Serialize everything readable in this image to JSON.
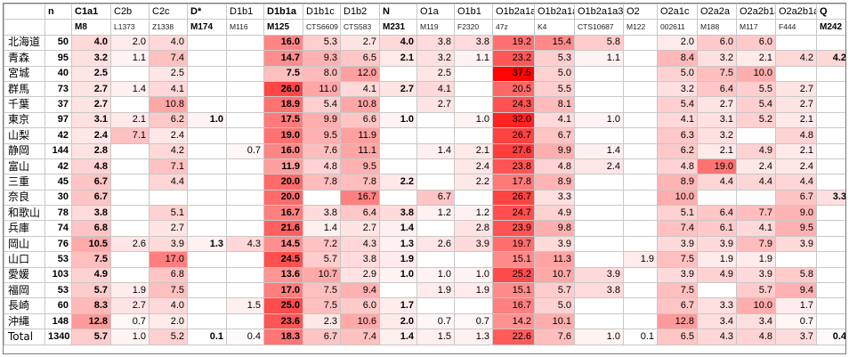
{
  "header": [
    "n",
    "C1a1",
    "C2b",
    "C2c",
    "D*",
    "D1b1",
    "D1b1a",
    "D1b1c",
    "D1b2",
    "N",
    "O1a",
    "O1b1",
    "O1b2a1a1",
    "O1b2a1a2",
    "O1b2a1a3",
    "O2",
    "O2a1c",
    "O2a2a",
    "O2a2b1a1",
    "O2a2b1a2",
    "Q"
  ],
  "subheader": [
    "",
    "M8",
    "L1373",
    "Z1338",
    "M174",
    "M116",
    "M125",
    "CTS6609",
    "CTS583",
    "M231",
    "M119",
    "F2320",
    "47z",
    "K4",
    "CTS10687",
    "M122",
    "002611",
    "M188",
    "M117",
    "F444",
    "M242"
  ],
  "bold_columns": [
    1,
    4,
    6,
    9,
    20
  ],
  "rows": [
    {
      "pref": "北海道",
      "n": "50",
      "v": [
        "4.0",
        "2.0",
        "4.0",
        "",
        "",
        "16.0",
        "5.3",
        "2.7",
        "4.0",
        "3.8",
        "3.8",
        "19.2",
        "15.4",
        "5.8",
        "",
        "2.0",
        "6.0",
        "6.0",
        "",
        ""
      ]
    },
    {
      "pref": "青森",
      "n": "95",
      "v": [
        "3.2",
        "1.1",
        "7.4",
        "",
        "",
        "14.7",
        "9.3",
        "6.5",
        "2.1",
        "3.2",
        "1.1",
        "23.2",
        "5.3",
        "1.1",
        "",
        "8.4",
        "3.2",
        "2.1",
        "4.2",
        "4.2"
      ]
    },
    {
      "pref": "宮城",
      "n": "40",
      "v": [
        "2.5",
        "",
        "2.5",
        "",
        "",
        "7.5",
        "8.0",
        "12.0",
        "",
        "2.5",
        "",
        "37.5",
        "5.0",
        "",
        "",
        "5.0",
        "7.5",
        "10.0",
        "",
        ""
      ]
    },
    {
      "pref": "群馬",
      "n": "73",
      "v": [
        "2.7",
        "1.4",
        "4.1",
        "",
        "",
        "26.0",
        "11.0",
        "4.1",
        "2.7",
        "4.1",
        "",
        "20.5",
        "5.5",
        "",
        "",
        "3.2",
        "6.4",
        "5.5",
        "2.7",
        ""
      ]
    },
    {
      "pref": "千葉",
      "n": "37",
      "v": [
        "2.7",
        "",
        "10.8",
        "",
        "",
        "18.9",
        "5.4",
        "10.8",
        "",
        "2.7",
        "",
        "24.3",
        "8.1",
        "",
        "",
        "5.4",
        "2.7",
        "5.4",
        "2.7",
        ""
      ]
    },
    {
      "pref": "東京",
      "n": "97",
      "v": [
        "3.1",
        "2.1",
        "6.2",
        "1.0",
        "",
        "17.5",
        "9.9",
        "6.6",
        "1.0",
        "",
        "1.0",
        "32.0",
        "4.1",
        "1.0",
        "",
        "4.1",
        "3.1",
        "5.2",
        "2.1",
        ""
      ]
    },
    {
      "pref": "山梨",
      "n": "42",
      "v": [
        "2.4",
        "7.1",
        "2.4",
        "",
        "",
        "19.0",
        "9.5",
        "11.9",
        "",
        "",
        "",
        "26.7",
        "6.7",
        "",
        "",
        "6.3",
        "3.2",
        "",
        "4.8",
        ""
      ]
    },
    {
      "pref": "静岡",
      "n": "144",
      "v": [
        "2.8",
        "",
        "4.2",
        "",
        "0.7",
        "16.0",
        "7.6",
        "11.1",
        "",
        "1.4",
        "2.1",
        "27.6",
        "9.9",
        "1.4",
        "",
        "6.2",
        "2.1",
        "4.9",
        "2.1",
        ""
      ]
    },
    {
      "pref": "富山",
      "n": "42",
      "v": [
        "4.8",
        "",
        "7.1",
        "",
        "",
        "11.9",
        "4.8",
        "9.5",
        "",
        "",
        "2.4",
        "23.8",
        "4.8",
        "2.4",
        "",
        "4.8",
        "19.0",
        "2.4",
        "2.4",
        ""
      ]
    },
    {
      "pref": "三重",
      "n": "45",
      "v": [
        "6.7",
        "",
        "4.4",
        "",
        "",
        "20.0",
        "7.8",
        "7.8",
        "2.2",
        "",
        "2.2",
        "17.8",
        "8.9",
        "",
        "",
        "8.9",
        "4.4",
        "4.4",
        "4.4",
        ""
      ]
    },
    {
      "pref": "奈良",
      "n": "30",
      "v": [
        "6.7",
        "",
        "",
        "",
        "",
        "20.0",
        "",
        "16.7",
        "",
        "6.7",
        "",
        "26.7",
        "3.3",
        "",
        "",
        "10.0",
        "",
        "",
        "6.7",
        "3.3"
      ]
    },
    {
      "pref": "和歌山",
      "n": "78",
      "v": [
        "3.8",
        "",
        "5.1",
        "",
        "",
        "16.7",
        "3.8",
        "6.4",
        "3.8",
        "1.2",
        "1.2",
        "24.7",
        "4.9",
        "",
        "",
        "5.1",
        "6.4",
        "7.7",
        "9.0",
        ""
      ]
    },
    {
      "pref": "兵庫",
      "n": "74",
      "v": [
        "6.8",
        "",
        "2.7",
        "",
        "",
        "21.6",
        "1.4",
        "2.7",
        "1.4",
        "",
        "2.8",
        "23.9",
        "9.8",
        "",
        "",
        "7.4",
        "6.1",
        "4.1",
        "9.5",
        ""
      ]
    },
    {
      "pref": "岡山",
      "n": "76",
      "v": [
        "10.5",
        "2.6",
        "3.9",
        "1.3",
        "4.3",
        "14.5",
        "7.2",
        "4.3",
        "1.3",
        "2.6",
        "3.9",
        "19.7",
        "3.9",
        "",
        "",
        "3.9",
        "3.9",
        "7.9",
        "3.9",
        ""
      ]
    },
    {
      "pref": "山口",
      "n": "53",
      "v": [
        "7.5",
        "",
        "17.0",
        "",
        "",
        "24.5",
        "5.7",
        "3.8",
        "1.9",
        "",
        "",
        "15.1",
        "11.3",
        "",
        "1.9",
        "7.5",
        "1.9",
        "1.9",
        "",
        ""
      ]
    },
    {
      "pref": "愛媛",
      "n": "103",
      "v": [
        "4.9",
        "",
        "6.8",
        "",
        "",
        "13.6",
        "10.7",
        "2.9",
        "1.0",
        "1.0",
        "1.0",
        "25.2",
        "10.7",
        "3.9",
        "",
        "3.9",
        "4.9",
        "3.9",
        "5.8",
        ""
      ]
    },
    {
      "pref": "福岡",
      "n": "53",
      "v": [
        "5.7",
        "1.9",
        "7.5",
        "",
        "",
        "17.0",
        "7.5",
        "9.4",
        "",
        "1.9",
        "1.9",
        "15.1",
        "5.7",
        "3.8",
        "",
        "7.5",
        "",
        "5.7",
        "9.4",
        ""
      ]
    },
    {
      "pref": "長崎",
      "n": "60",
      "v": [
        "8.3",
        "2.7",
        "4.0",
        "",
        "1.5",
        "25.0",
        "7.5",
        "6.0",
        "1.7",
        "",
        "",
        "16.7",
        "5.0",
        "",
        "",
        "6.7",
        "3.3",
        "10.0",
        "1.7",
        ""
      ]
    },
    {
      "pref": "沖縄",
      "n": "148",
      "v": [
        "12.8",
        "0.7",
        "2.0",
        "",
        "",
        "23.6",
        "2.3",
        "10.6",
        "2.0",
        "0.7",
        "0.7",
        "14.2",
        "10.1",
        "",
        "",
        "12.8",
        "3.4",
        "3.4",
        "0.7",
        ""
      ]
    },
    {
      "pref": "Total",
      "n": "1340",
      "v": [
        "5.7",
        "1.0",
        "5.2",
        "0.1",
        "0.4",
        "18.3",
        "6.7",
        "7.4",
        "1.4",
        "1.5",
        "1.3",
        "22.6",
        "7.6",
        "1.0",
        "0.1",
        "6.5",
        "4.3",
        "4.8",
        "3.7",
        "0.4"
      ]
    }
  ],
  "colors": {
    "grid": "#c8c8c8",
    "border": "#7a7a7a",
    "heat_low": "#ffffff",
    "heat_high": "#ff0000"
  }
}
